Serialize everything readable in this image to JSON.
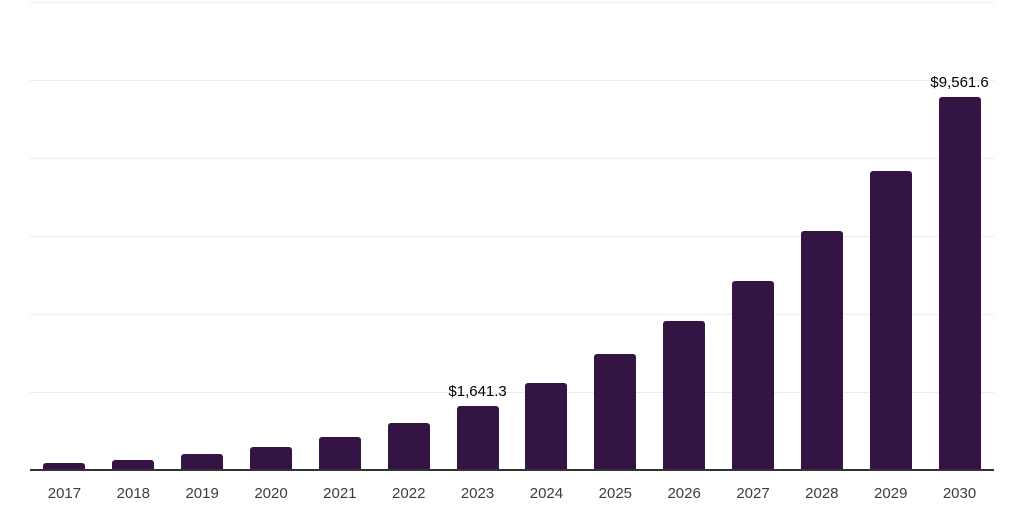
{
  "chart_data": {
    "type": "bar",
    "title": "",
    "xlabel": "",
    "ylabel": "",
    "categories": [
      "2017",
      "2018",
      "2019",
      "2020",
      "2021",
      "2022",
      "2023",
      "2024",
      "2025",
      "2026",
      "2027",
      "2028",
      "2029",
      "2030"
    ],
    "values": [
      175,
      250,
      400,
      585,
      855,
      1215,
      1641.3,
      2220,
      2975,
      3810,
      4850,
      6120,
      7670,
      9561.6
    ],
    "data_labels": [
      {
        "category": "2023",
        "text": "$1,641.3"
      },
      {
        "category": "2030",
        "text": "$9,561.6"
      }
    ],
    "ylim": [
      0,
      12000
    ],
    "gridline_interval": 2000,
    "grid": true,
    "y_tick_labels_visible": false,
    "legend": "none",
    "colors": {
      "bar": "#331444",
      "gridline": "#ececec",
      "axis_line": "#333333",
      "x_tick_label": "#3d3d3d",
      "data_label": "#000000",
      "background": "#ffffff"
    }
  }
}
